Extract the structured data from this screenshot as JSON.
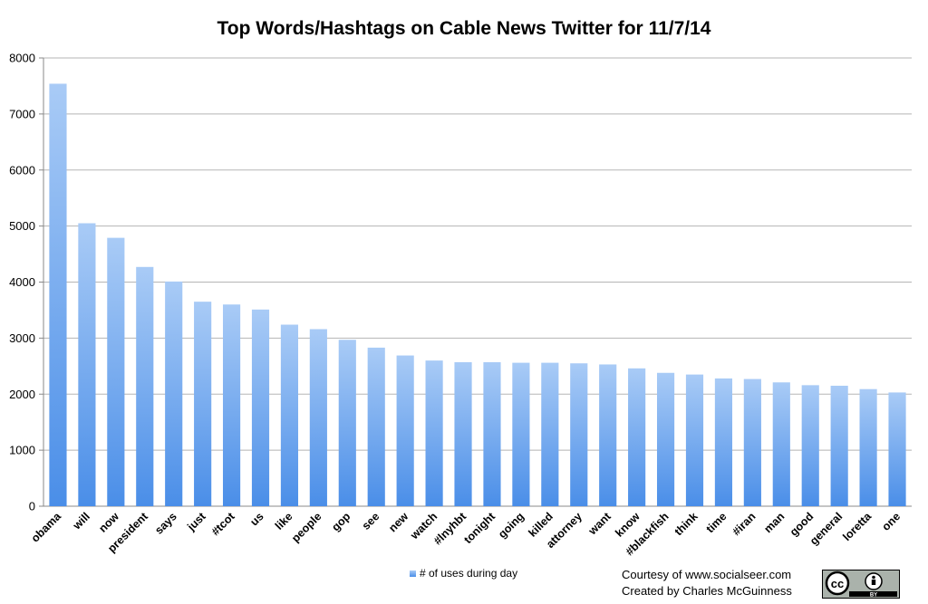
{
  "chart_data": {
    "type": "bar",
    "title": "Top Words/Hashtags on Cable News Twitter for 11/7/14",
    "categories": [
      "obama",
      "will",
      "now",
      "president",
      "says",
      "just",
      "#tcot",
      "us",
      "like",
      "people",
      "gop",
      "see",
      "new",
      "watch",
      "#lnyhbt",
      "tonight",
      "going",
      "killed",
      "attorney",
      "want",
      "know",
      "#blackfish",
      "think",
      "time",
      "#iran",
      "man",
      "good",
      "general",
      "loretta",
      "one"
    ],
    "series": [
      {
        "name": "# of uses during day",
        "values": [
          7540,
          5050,
          4790,
          4270,
          4010,
          3650,
          3600,
          3510,
          3240,
          3160,
          2970,
          2830,
          2690,
          2600,
          2570,
          2570,
          2560,
          2560,
          2550,
          2530,
          2460,
          2380,
          2350,
          2280,
          2270,
          2210,
          2160,
          2150,
          2090,
          2030
        ]
      }
    ],
    "yticks": [
      0,
      1000,
      2000,
      3000,
      4000,
      5000,
      6000,
      7000,
      8000
    ],
    "ylim": [
      0,
      8000
    ],
    "grid": true,
    "legend": "bottom",
    "bar_color_top": "#a9cbf6",
    "bar_color_bottom": "#4a8ee8"
  },
  "credits": {
    "line1": "Courtesy of www.socialseer.com",
    "line2": "Created by Charles McGuinness"
  },
  "badge": {
    "icon": "creative-commons-by-icon",
    "left_text": "cc",
    "right_text": "BY"
  }
}
